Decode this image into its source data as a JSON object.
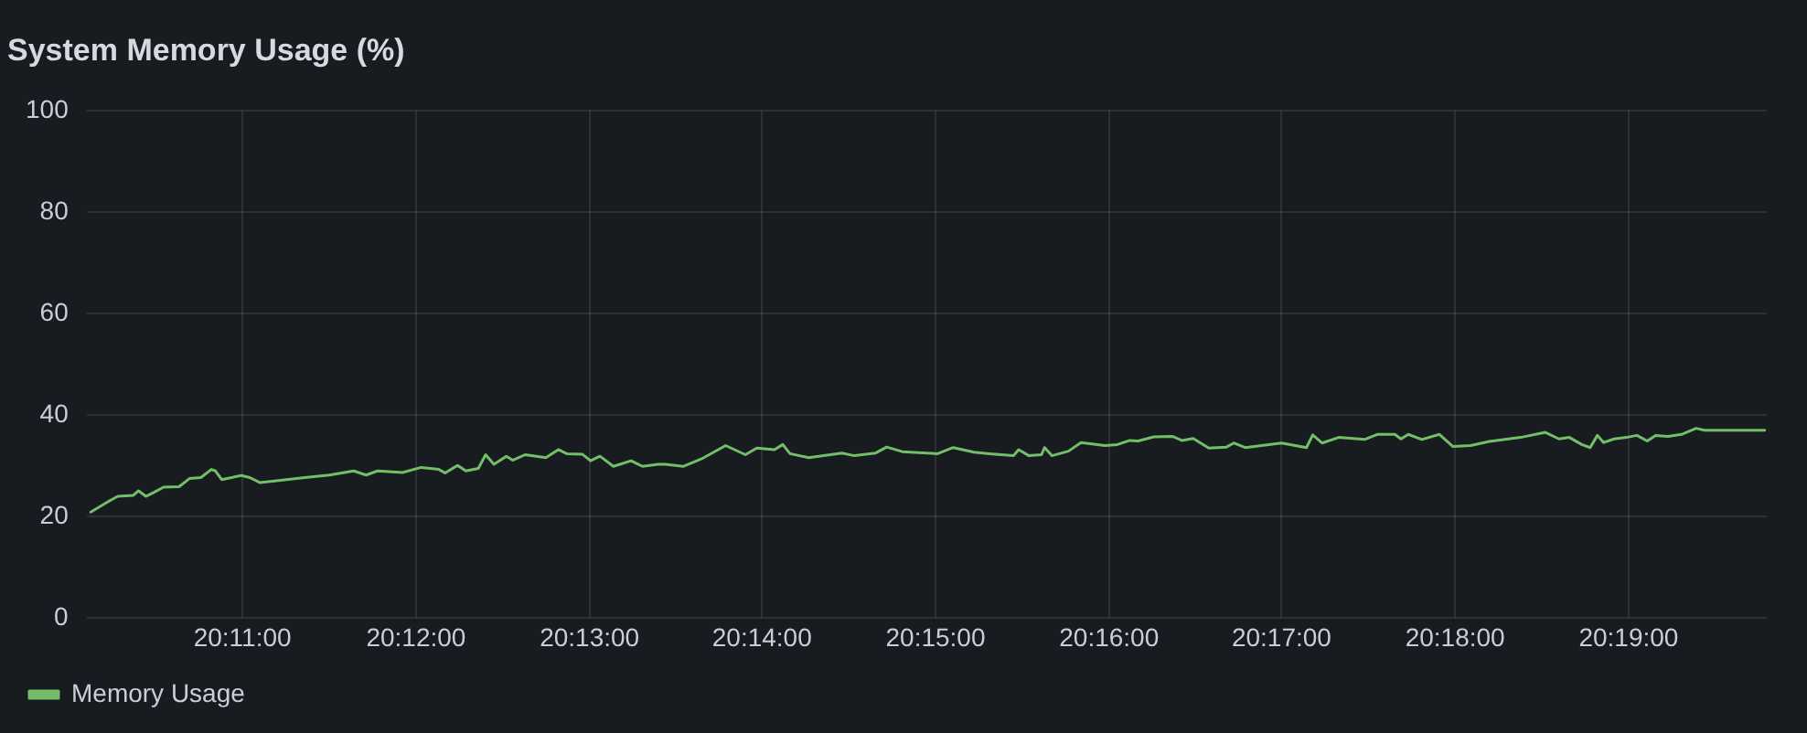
{
  "chart_data": {
    "type": "line",
    "title": "System Memory Usage (%)",
    "x": [
      20.1687,
      20.1705,
      20.1713,
      20.1728,
      20.1733,
      20.174,
      20.1748,
      20.1757,
      20.1772,
      20.1782,
      20.1793,
      20.1803,
      20.1807,
      20.1813,
      20.1832,
      20.184,
      20.185,
      20.1868,
      20.1893,
      20.1917,
      20.194,
      20.1952,
      20.1963,
      20.1987,
      20.2005,
      20.2022,
      20.2028,
      20.204,
      20.2048,
      20.206,
      20.2067,
      20.2075,
      20.2087,
      20.2093,
      20.2105,
      20.2125,
      20.2137,
      20.2145,
      20.216,
      20.2168,
      20.2177,
      20.219,
      20.2207,
      20.2218,
      20.2233,
      20.224,
      20.2257,
      20.2275,
      20.2298,
      20.2317,
      20.2328,
      20.2345,
      20.2353,
      20.236,
      20.2378,
      20.241,
      20.2422,
      20.2442,
      20.2453,
      20.2468,
      20.2502,
      20.2517,
      20.2537,
      20.2552,
      20.2575,
      20.258,
      20.259,
      20.2602,
      20.2605,
      20.2612,
      20.2628,
      20.264,
      20.2663,
      20.2675,
      20.2687,
      20.2695,
      20.271,
      20.2728,
      20.2737,
      20.2748,
      20.2763,
      20.278,
      20.2787,
      20.2798,
      20.2833,
      20.2857,
      20.2863,
      20.2872,
      20.2888,
      20.2913,
      20.2925,
      20.2942,
      20.2948,
      20.2955,
      20.2968,
      20.2985,
      20.2998,
      20.3015,
      20.3033,
      20.3063,
      20.3087,
      20.31,
      20.311,
      20.3122,
      20.313,
      20.3137,
      20.3143,
      20.3153,
      20.3165,
      20.3175,
      20.3185,
      20.3193,
      20.3205,
      20.3218,
      20.3232,
      20.324,
      20.3298
    ],
    "series": [
      {
        "name": "Memory Usage",
        "color": "#73bf69",
        "values": [
          20.9,
          23.1,
          24.0,
          24.2,
          25.1,
          24.0,
          24.8,
          25.8,
          25.9,
          27.5,
          27.7,
          29.3,
          29.0,
          27.3,
          28.1,
          27.7,
          26.7,
          27.1,
          27.7,
          28.2,
          29.0,
          28.2,
          29.0,
          28.7,
          29.7,
          29.3,
          28.6,
          30.1,
          29.0,
          29.5,
          32.2,
          30.3,
          31.9,
          31.1,
          32.2,
          31.6,
          33.2,
          32.4,
          32.3,
          31.0,
          31.9,
          29.9,
          31.0,
          29.9,
          30.3,
          30.3,
          29.9,
          31.4,
          34.0,
          32.2,
          33.5,
          33.2,
          34.2,
          32.4,
          31.6,
          32.5,
          32.0,
          32.5,
          33.7,
          32.8,
          32.4,
          33.6,
          32.7,
          32.4,
          32.0,
          33.2,
          32.0,
          32.2,
          33.6,
          32.0,
          32.9,
          34.6,
          34.0,
          34.2,
          35.0,
          34.9,
          35.7,
          35.8,
          35.0,
          35.4,
          33.5,
          33.7,
          34.5,
          33.6,
          34.5,
          33.6,
          36.1,
          34.5,
          35.6,
          35.2,
          36.2,
          36.2,
          35.3,
          36.2,
          35.2,
          36.2,
          33.8,
          34.0,
          34.8,
          35.6,
          36.6,
          35.3,
          35.6,
          34.2,
          33.6,
          36.0,
          34.6,
          35.3,
          35.6,
          36.0,
          34.9,
          36.0,
          35.8,
          36.2,
          37.4,
          37.0,
          37.0
        ]
      }
    ],
    "xlim": [
      20.1683,
      20.33
    ],
    "xticks": [
      {
        "value": 20.1833,
        "label": "20:11:00"
      },
      {
        "value": 20.2,
        "label": "20:12:00"
      },
      {
        "value": 20.2167,
        "label": "20:13:00"
      },
      {
        "value": 20.2333,
        "label": "20:14:00"
      },
      {
        "value": 20.25,
        "label": "20:15:00"
      },
      {
        "value": 20.2667,
        "label": "20:16:00"
      },
      {
        "value": 20.2833,
        "label": "20:17:00"
      },
      {
        "value": 20.3,
        "label": "20:18:00"
      },
      {
        "value": 20.3167,
        "label": "20:19:00"
      }
    ],
    "ylim": [
      0,
      100
    ],
    "yticks": [
      0,
      20,
      40,
      60,
      80,
      100
    ],
    "grid": true,
    "legend": "bottom left",
    "marker": "none",
    "line_style": "solid"
  }
}
